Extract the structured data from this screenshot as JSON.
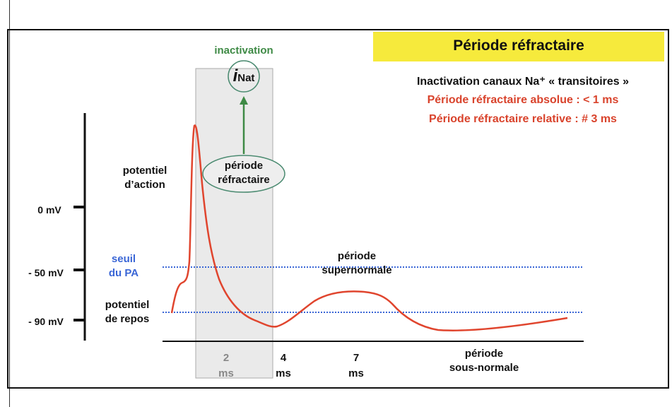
{
  "title": "Période réfractaire",
  "info": {
    "line1": "Inactivation canaux Na⁺ « transitoires »",
    "line2": "Période réfractaire absolue : < 1 ms",
    "line3": "Période réfractaire relative : # 3 ms"
  },
  "labels": {
    "inactivation": "inactivation",
    "inat_i": "i",
    "inat_sub": "Nat",
    "periode_refractaire_1": "période",
    "periode_refractaire_2": "réfractaire",
    "potentiel_action_1": "potentiel",
    "potentiel_action_2": "d’action",
    "seuil_1": "seuil",
    "seuil_2": "du PA",
    "repos_1": "potentiel",
    "repos_2": "de repos",
    "supernormale_1": "période",
    "supernormale_2": "supernormale",
    "sousnormale_1": "période",
    "sousnormale_2": "sous-normale"
  },
  "y_ticks": [
    "0 mV",
    "- 50 mV",
    "- 90 mV"
  ],
  "x_ticks": [
    {
      "value": "2",
      "unit": "ms"
    },
    {
      "value": "4",
      "unit": "ms"
    },
    {
      "value": "7",
      "unit": "ms"
    }
  ],
  "colors": {
    "highlight": "#f6ea3c",
    "curve": "#e0452e",
    "threshold": "#3a66d6",
    "annotation": "#3e8a45",
    "refractory_box": "#e6e6e6"
  }
}
